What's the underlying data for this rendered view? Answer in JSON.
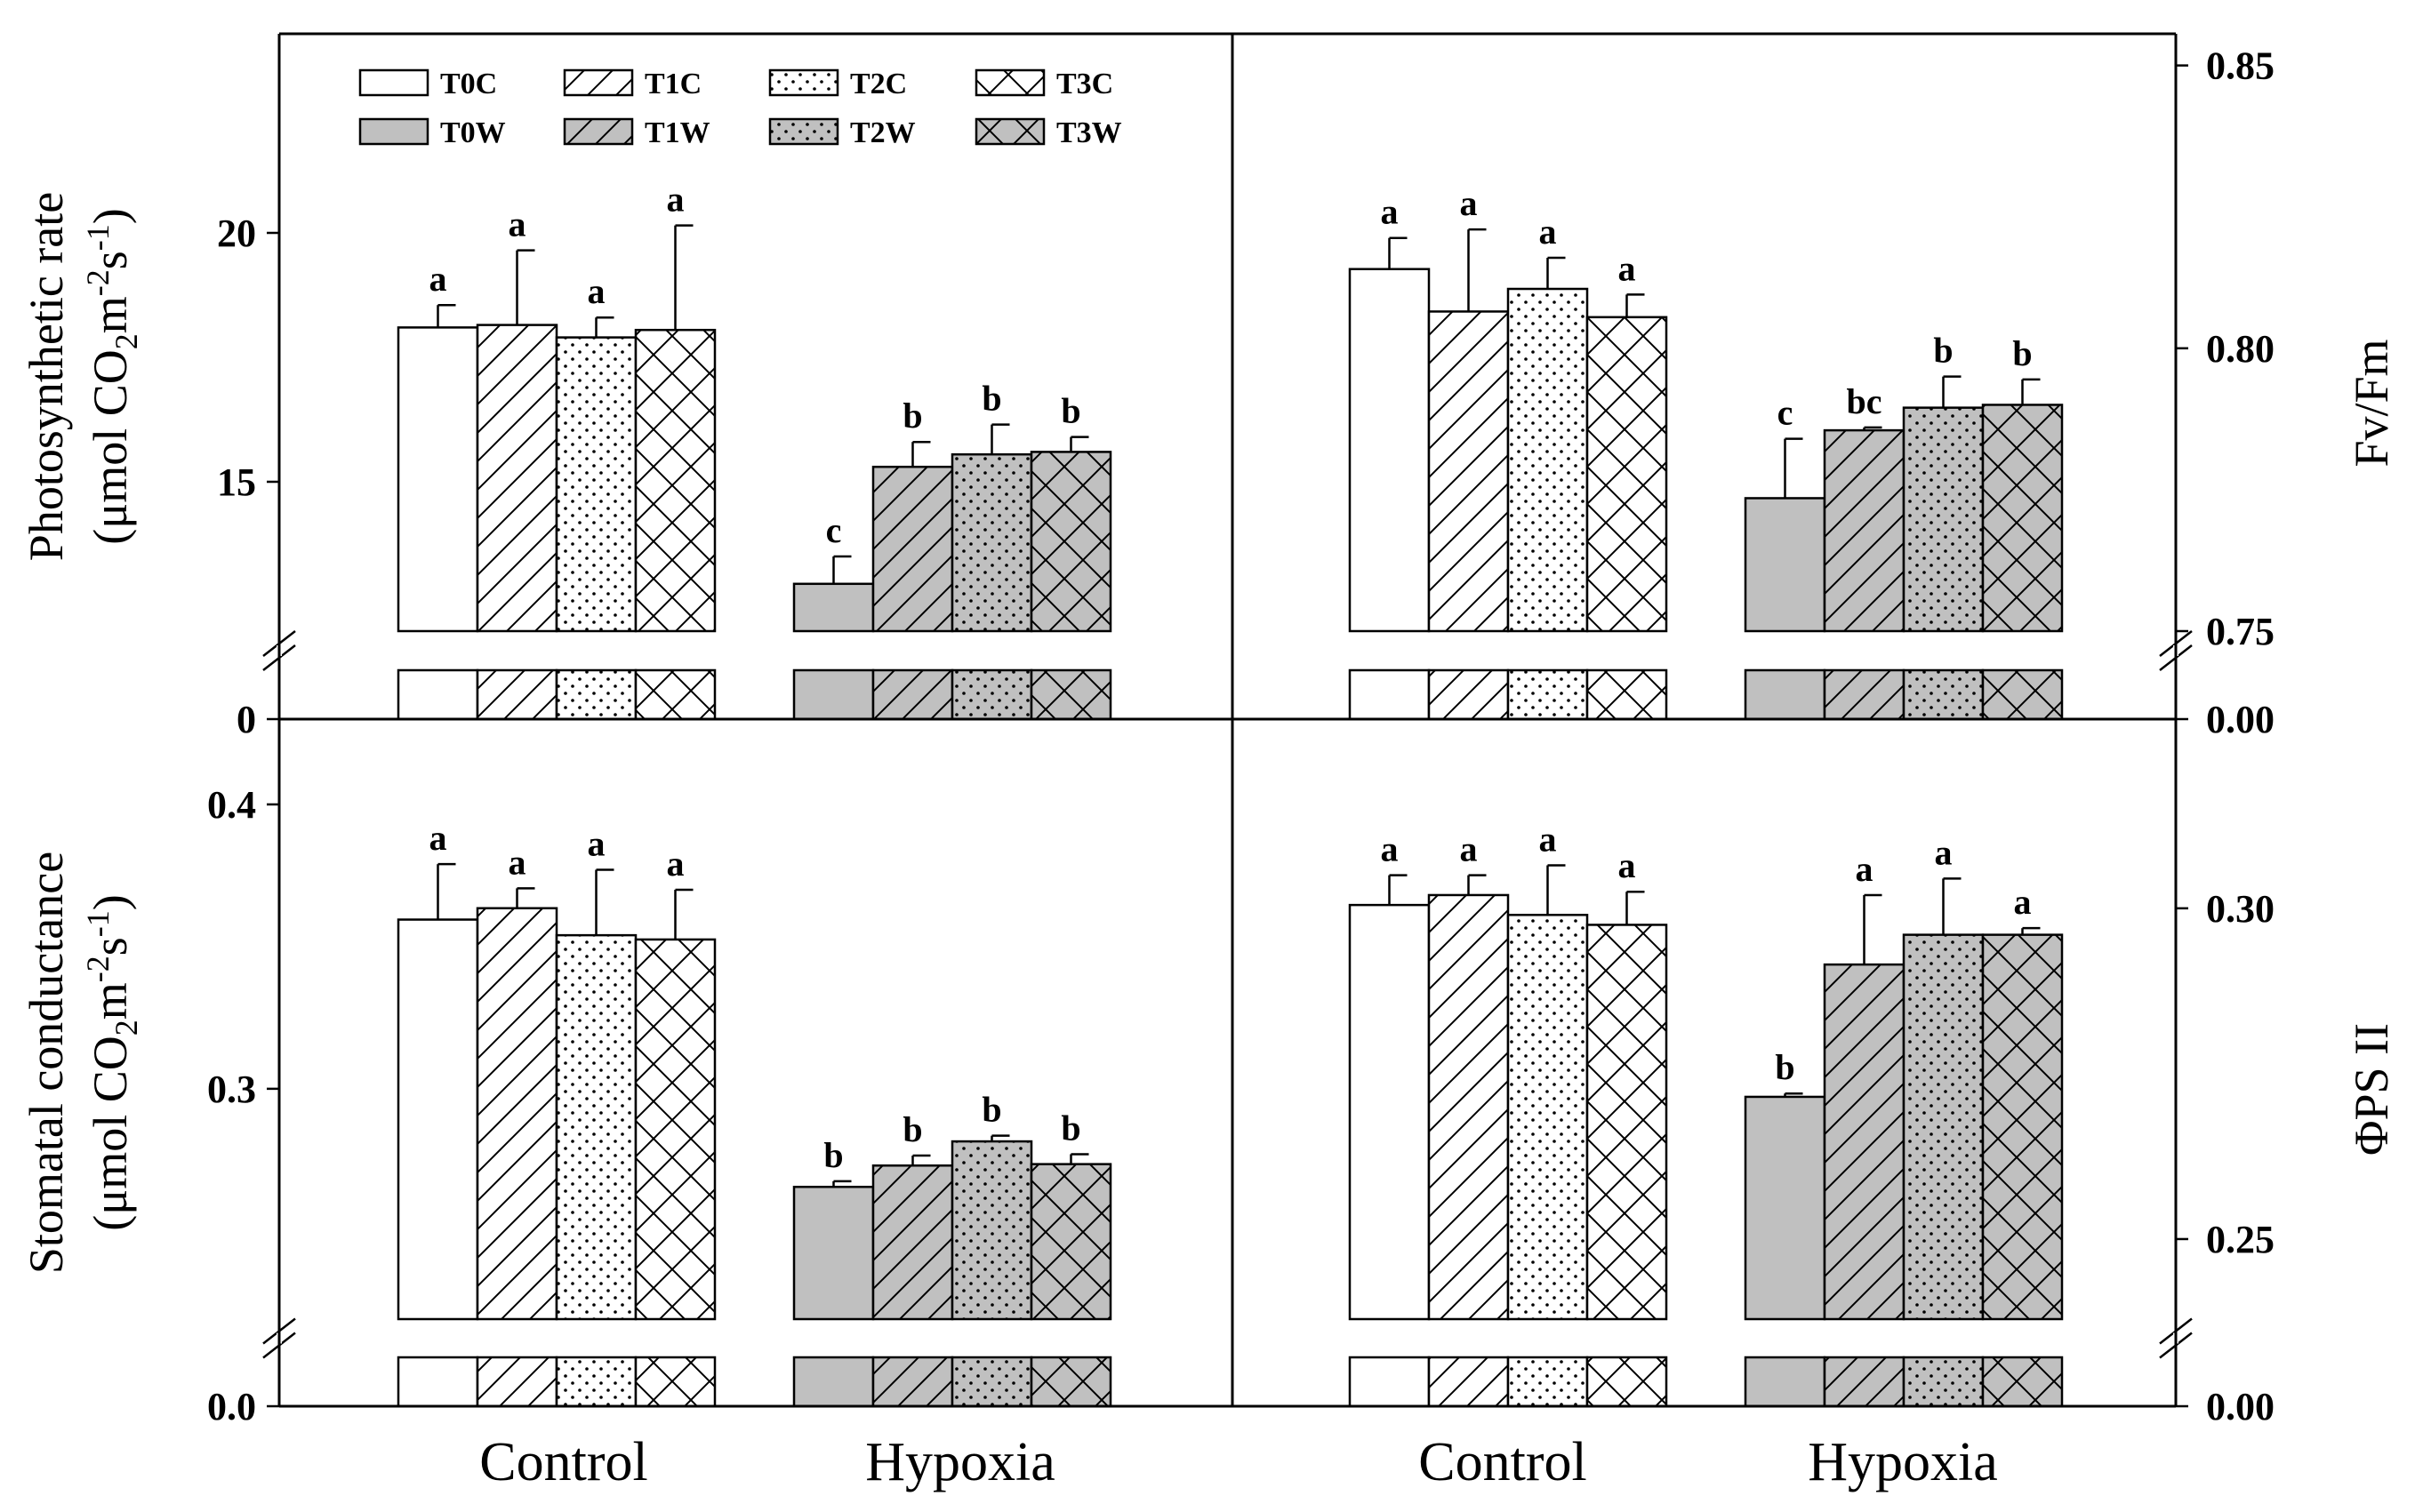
{
  "chart_data": [
    {
      "id": "photosynthetic",
      "type": "bar",
      "ylabel_line1": "Photosynthetic rate",
      "ylabel_line2_prefix": "(μmol CO",
      "ylabel_sub": "2",
      "ylabel_mid": "m",
      "ylabel_sup1": "-2",
      "ylabel_s": "s",
      "ylabel_sup2": "-1",
      "ylabel_close": ")",
      "axis_side": "left",
      "ylim": [
        12,
        24
      ],
      "break_range": [
        0,
        12
      ],
      "ticks": [
        {
          "value": 0,
          "label": "0"
        },
        {
          "value": 15,
          "label": "15"
        },
        {
          "value": 20,
          "label": "20"
        }
      ],
      "groups": [
        "Control",
        "Hypoxia"
      ],
      "series": [
        {
          "name": "T0C",
          "group": 0,
          "value": 18.1,
          "err": 0.45,
          "letter": "a"
        },
        {
          "name": "T1C",
          "group": 0,
          "value": 18.15,
          "err": 1.5,
          "letter": "a"
        },
        {
          "name": "T2C",
          "group": 0,
          "value": 17.9,
          "err": 0.4,
          "letter": "a"
        },
        {
          "name": "T3C",
          "group": 0,
          "value": 18.05,
          "err": 2.1,
          "letter": "a"
        },
        {
          "name": "T0W",
          "group": 1,
          "value": 12.95,
          "err": 0.55,
          "letter": "c"
        },
        {
          "name": "T1W",
          "group": 1,
          "value": 15.3,
          "err": 0.5,
          "letter": "b"
        },
        {
          "name": "T2W",
          "group": 1,
          "value": 15.55,
          "err": 0.6,
          "letter": "b"
        },
        {
          "name": "T3W",
          "group": 1,
          "value": 15.6,
          "err": 0.3,
          "letter": "b"
        }
      ]
    },
    {
      "id": "fvfm",
      "type": "bar",
      "ylabel": "Fv/Fm",
      "axis_side": "right",
      "ylim": [
        0.75,
        0.8556
      ],
      "break_range": [
        0,
        0.75
      ],
      "ticks": [
        {
          "value": 0,
          "label": "0.00"
        },
        {
          "value": 0.75,
          "label": "0.75"
        },
        {
          "value": 0.8,
          "label": "0.80"
        },
        {
          "value": 0.85,
          "label": "0.85"
        }
      ],
      "groups": [
        "Control",
        "Hypoxia"
      ],
      "series": [
        {
          "name": "T0C",
          "group": 0,
          "value": 0.814,
          "err": 0.0055,
          "letter": "a"
        },
        {
          "name": "T1C",
          "group": 0,
          "value": 0.8065,
          "err": 0.0145,
          "letter": "a"
        },
        {
          "name": "T2C",
          "group": 0,
          "value": 0.8105,
          "err": 0.0055,
          "letter": "a"
        },
        {
          "name": "T3C",
          "group": 0,
          "value": 0.8055,
          "err": 0.004,
          "letter": "a"
        },
        {
          "name": "T0W",
          "group": 1,
          "value": 0.7735,
          "err": 0.0105,
          "letter": "c"
        },
        {
          "name": "T1W",
          "group": 1,
          "value": 0.7855,
          "err": 0.0005,
          "letter": "bc"
        },
        {
          "name": "T2W",
          "group": 1,
          "value": 0.7895,
          "err": 0.0055,
          "letter": "b"
        },
        {
          "name": "T3W",
          "group": 1,
          "value": 0.79,
          "err": 0.0045,
          "letter": "b"
        }
      ]
    },
    {
      "id": "stomatal",
      "type": "bar",
      "ylabel_line1": "Stomatal conductance",
      "ylabel_line2_prefix": "(μmol CO",
      "ylabel_sub": "2",
      "ylabel_mid": "m",
      "ylabel_sup1": "-2",
      "ylabel_s": "s",
      "ylabel_sup2": "-1",
      "ylabel_close": ")",
      "axis_side": "left",
      "ylim": [
        0.219,
        0.43
      ],
      "break_range": [
        0,
        0.219
      ],
      "ticks": [
        {
          "value": 0,
          "label": "0.0"
        },
        {
          "value": 0.3,
          "label": "0.3"
        },
        {
          "value": 0.4,
          "label": "0.4"
        }
      ],
      "groups": [
        "Control",
        "Hypoxia"
      ],
      "series": [
        {
          "name": "T0C",
          "group": 0,
          "value": 0.3595,
          "err": 0.0195,
          "letter": "a"
        },
        {
          "name": "T1C",
          "group": 0,
          "value": 0.3635,
          "err": 0.007,
          "letter": "a"
        },
        {
          "name": "T2C",
          "group": 0,
          "value": 0.354,
          "err": 0.023,
          "letter": "a"
        },
        {
          "name": "T3C",
          "group": 0,
          "value": 0.3525,
          "err": 0.0175,
          "letter": "a"
        },
        {
          "name": "T0W",
          "group": 1,
          "value": 0.2655,
          "err": 0.002,
          "letter": "b"
        },
        {
          "name": "T1W",
          "group": 1,
          "value": 0.273,
          "err": 0.0035,
          "letter": "b"
        },
        {
          "name": "T2W",
          "group": 1,
          "value": 0.2815,
          "err": 0.002,
          "letter": "b"
        },
        {
          "name": "T3W",
          "group": 1,
          "value": 0.2735,
          "err": 0.0035,
          "letter": "b"
        }
      ]
    },
    {
      "id": "phipsii",
      "type": "bar",
      "ylabel": "ΦPS II",
      "axis_side": "right",
      "ylim": [
        0.2379,
        0.3286
      ],
      "break_range": [
        0,
        0.2379
      ],
      "ticks": [
        {
          "value": 0,
          "label": "0.00"
        },
        {
          "value": 0.25,
          "label": "0.25"
        },
        {
          "value": 0.3,
          "label": "0.30"
        }
      ],
      "groups": [
        "Control",
        "Hypoxia"
      ],
      "series": [
        {
          "name": "T0C",
          "group": 0,
          "value": 0.3005,
          "err": 0.0045,
          "letter": "a"
        },
        {
          "name": "T1C",
          "group": 0,
          "value": 0.302,
          "err": 0.003,
          "letter": "a"
        },
        {
          "name": "T2C",
          "group": 0,
          "value": 0.299,
          "err": 0.0075,
          "letter": "a"
        },
        {
          "name": "T3C",
          "group": 0,
          "value": 0.2975,
          "err": 0.005,
          "letter": "a"
        },
        {
          "name": "T0W",
          "group": 1,
          "value": 0.2715,
          "err": 0.0005,
          "letter": "b"
        },
        {
          "name": "T1W",
          "group": 1,
          "value": 0.2915,
          "err": 0.0105,
          "letter": "a"
        },
        {
          "name": "T2W",
          "group": 1,
          "value": 0.296,
          "err": 0.0085,
          "letter": "a"
        },
        {
          "name": "T3W",
          "group": 1,
          "value": 0.296,
          "err": 0.001,
          "letter": "a"
        }
      ]
    }
  ],
  "legend": {
    "placement": "top-left",
    "entries": [
      "T0C",
      "T1C",
      "T2C",
      "T3C",
      "T0W",
      "T1W",
      "T2W",
      "T3W"
    ]
  },
  "x_categories": [
    "Control",
    "Hypoxia"
  ],
  "colors": {
    "control_fill": "#ffffff",
    "hypoxia_fill": "#c0c0c0",
    "stroke": "#000000"
  }
}
